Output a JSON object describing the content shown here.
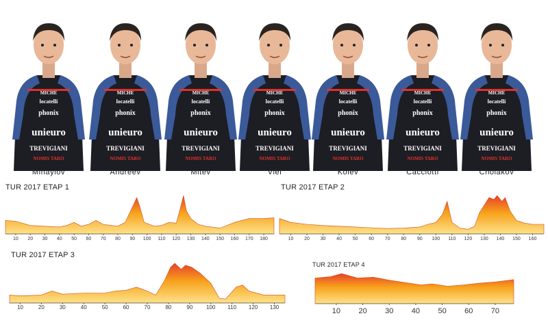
{
  "riders": [
    {
      "name": "Mihaylov"
    },
    {
      "name": "Andreev"
    },
    {
      "name": "Mitev"
    },
    {
      "name": "Viel"
    },
    {
      "name": "Kolev"
    },
    {
      "name": "Cacciotti"
    },
    {
      "name": "Cholakov"
    }
  ],
  "jersey": {
    "sponsor_main": "unieuro",
    "sponsor_top": "phonix",
    "sponsor_small_1": "MICHE",
    "sponsor_small_2": "locatelli",
    "sponsor_lower": "TREVIGIANI",
    "sponsor_badge": "NOMIS TARO",
    "body_color": "#1d1d24",
    "sleeve_color": "#3a5a9a",
    "accent_color": "#e0322a",
    "logo_color": "#f0a020"
  },
  "stages": [
    {
      "title": "TUR 2017 ETAP 1",
      "ticks": [
        "10",
        "20",
        "30",
        "40",
        "50",
        "60",
        "70",
        "80",
        "90",
        "100",
        "110",
        "120",
        "130",
        "140",
        "150",
        "160",
        "170",
        "180"
      ],
      "tick_values": [
        10,
        20,
        30,
        40,
        50,
        60,
        70,
        80,
        90,
        100,
        110,
        120,
        130,
        140,
        150,
        160,
        170,
        180
      ],
      "x_range": [
        3,
        187
      ],
      "profile": [
        [
          3,
          0.35
        ],
        [
          10,
          0.33
        ],
        [
          20,
          0.22
        ],
        [
          30,
          0.2
        ],
        [
          40,
          0.18
        ],
        [
          45,
          0.22
        ],
        [
          50,
          0.3
        ],
        [
          55,
          0.2
        ],
        [
          60,
          0.25
        ],
        [
          65,
          0.35
        ],
        [
          70,
          0.25
        ],
        [
          80,
          0.2
        ],
        [
          85,
          0.3
        ],
        [
          90,
          0.7
        ],
        [
          93,
          0.95
        ],
        [
          95,
          0.72
        ],
        [
          98,
          0.3
        ],
        [
          105,
          0.2
        ],
        [
          110,
          0.22
        ],
        [
          115,
          0.3
        ],
        [
          120,
          0.28
        ],
        [
          122,
          0.55
        ],
        [
          125,
          1.0
        ],
        [
          127,
          0.6
        ],
        [
          130,
          0.4
        ],
        [
          135,
          0.25
        ],
        [
          140,
          0.2
        ],
        [
          150,
          0.15
        ],
        [
          160,
          0.3
        ],
        [
          170,
          0.4
        ],
        [
          180,
          0.4
        ],
        [
          187,
          0.42
        ]
      ]
    },
    {
      "title": "TUR 2017 ETAP 2",
      "ticks": [
        "10",
        "20",
        "30",
        "40",
        "50",
        "60",
        "70",
        "80",
        "90",
        "100",
        "110",
        "120",
        "130",
        "140",
        "150",
        "160"
      ],
      "tick_values": [
        10,
        20,
        30,
        40,
        50,
        60,
        70,
        80,
        90,
        100,
        110,
        120,
        130,
        140,
        150,
        160
      ],
      "x_range": [
        3,
        167
      ],
      "profile": [
        [
          3,
          0.4
        ],
        [
          10,
          0.3
        ],
        [
          20,
          0.25
        ],
        [
          30,
          0.22
        ],
        [
          40,
          0.2
        ],
        [
          50,
          0.18
        ],
        [
          60,
          0.16
        ],
        [
          70,
          0.14
        ],
        [
          80,
          0.15
        ],
        [
          90,
          0.18
        ],
        [
          95,
          0.25
        ],
        [
          100,
          0.3
        ],
        [
          104,
          0.5
        ],
        [
          107,
          0.85
        ],
        [
          110,
          0.3
        ],
        [
          115,
          0.15
        ],
        [
          120,
          0.12
        ],
        [
          124,
          0.2
        ],
        [
          127,
          0.55
        ],
        [
          130,
          0.75
        ],
        [
          133,
          0.95
        ],
        [
          136,
          0.9
        ],
        [
          138,
          1.0
        ],
        [
          141,
          0.85
        ],
        [
          143,
          0.95
        ],
        [
          146,
          0.6
        ],
        [
          150,
          0.35
        ],
        [
          155,
          0.28
        ],
        [
          160,
          0.25
        ],
        [
          167,
          0.25
        ]
      ]
    },
    {
      "title": "TUR 2017 ETAP 3",
      "ticks": [
        "10",
        "20",
        "30",
        "40",
        "50",
        "60",
        "70",
        "80",
        "90",
        "100",
        "110",
        "120",
        "130"
      ],
      "tick_values": [
        10,
        20,
        30,
        40,
        50,
        60,
        70,
        80,
        90,
        100,
        110,
        120,
        130
      ],
      "x_range": [
        5,
        135
      ],
      "profile": [
        [
          5,
          0.2
        ],
        [
          10,
          0.18
        ],
        [
          20,
          0.2
        ],
        [
          25,
          0.3
        ],
        [
          30,
          0.22
        ],
        [
          40,
          0.25
        ],
        [
          50,
          0.25
        ],
        [
          55,
          0.3
        ],
        [
          60,
          0.32
        ],
        [
          65,
          0.4
        ],
        [
          70,
          0.3
        ],
        [
          74,
          0.2
        ],
        [
          78,
          0.55
        ],
        [
          81,
          0.9
        ],
        [
          83,
          1.0
        ],
        [
          86,
          0.85
        ],
        [
          88,
          0.95
        ],
        [
          91,
          0.9
        ],
        [
          95,
          0.75
        ],
        [
          100,
          0.5
        ],
        [
          104,
          0.12
        ],
        [
          107,
          0.1
        ],
        [
          112,
          0.4
        ],
        [
          115,
          0.45
        ],
        [
          118,
          0.3
        ],
        [
          125,
          0.2
        ],
        [
          135,
          0.2
        ]
      ]
    },
    {
      "title": "TUR 2017 ETAP 4",
      "ticks": [
        "10",
        "20",
        "30",
        "40",
        "50",
        "60",
        "70"
      ],
      "tick_values": [
        10,
        20,
        30,
        40,
        50,
        60,
        70
      ],
      "x_range": [
        2,
        77
      ],
      "profile": [
        [
          2,
          0.85
        ],
        [
          8,
          0.9
        ],
        [
          12,
          1.0
        ],
        [
          18,
          0.85
        ],
        [
          24,
          0.88
        ],
        [
          30,
          0.78
        ],
        [
          36,
          0.7
        ],
        [
          42,
          0.62
        ],
        [
          46,
          0.66
        ],
        [
          52,
          0.58
        ],
        [
          58,
          0.62
        ],
        [
          64,
          0.68
        ],
        [
          70,
          0.72
        ],
        [
          77,
          0.8
        ]
      ]
    }
  ]
}
